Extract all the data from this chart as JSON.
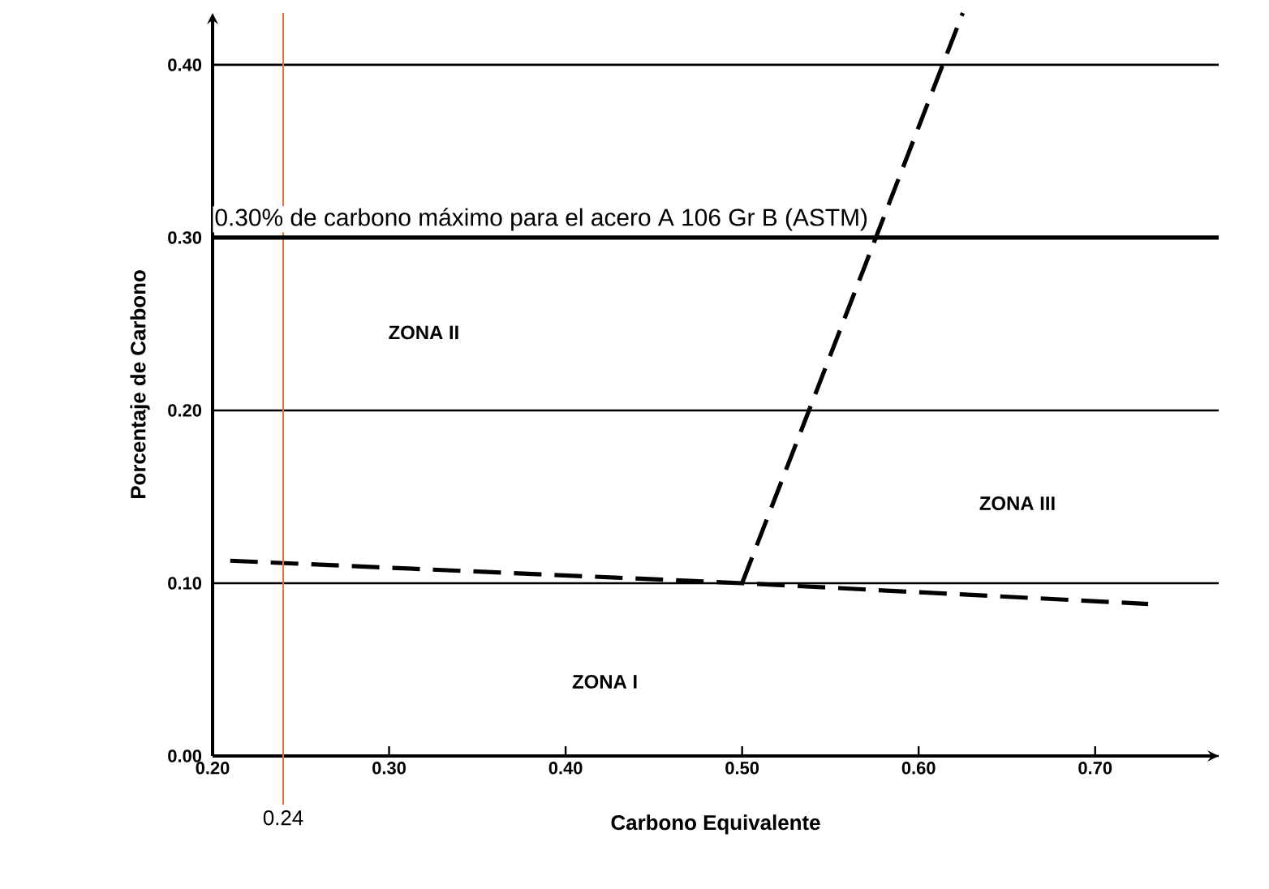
{
  "chart_data": {
    "type": "line",
    "xlabel": "Carbono Equivalente",
    "ylabel": "Porcentaje de Carbono",
    "xlim": [
      0.2,
      0.77
    ],
    "ylim": [
      0,
      0.43
    ],
    "xticks": [
      {
        "value": 0.2,
        "label": "0.20"
      },
      {
        "value": 0.3,
        "label": "0.30"
      },
      {
        "value": 0.4,
        "label": "0.40"
      },
      {
        "value": 0.5,
        "label": "0.50"
      },
      {
        "value": 0.6,
        "label": "0.60"
      },
      {
        "value": 0.7,
        "label": "0.70"
      }
    ],
    "yticks": [
      {
        "value": 0,
        "label": "0.00"
      },
      {
        "value": 0.1,
        "label": "0.10"
      },
      {
        "value": 0.2,
        "label": "0.20"
      },
      {
        "value": 0.3,
        "label": "0.30"
      },
      {
        "value": 0.4,
        "label": "0.40"
      }
    ],
    "grid": "y",
    "line_style": "dashed",
    "series": [
      {
        "color": "#000000",
        "x": [
          0.21,
          0.5,
          0.73
        ],
        "values": [
          0.113,
          0.1,
          0.088
        ]
      },
      {
        "color": "#000000",
        "x": [
          0.5,
          0.625
        ],
        "values": [
          0.1,
          0.43
        ]
      }
    ],
    "ref_lines": [
      {
        "axis": "x",
        "value": 0.24,
        "label": "0.24",
        "color": "#e8703a"
      },
      {
        "axis": "y",
        "value": 0.3,
        "label": "0.30% de carbono máximo para el acero A 106 Gr B (ASTM)",
        "color": "#000000"
      }
    ],
    "annotations": [
      "ZONA I",
      "ZONA II",
      "ZONA III"
    ]
  }
}
